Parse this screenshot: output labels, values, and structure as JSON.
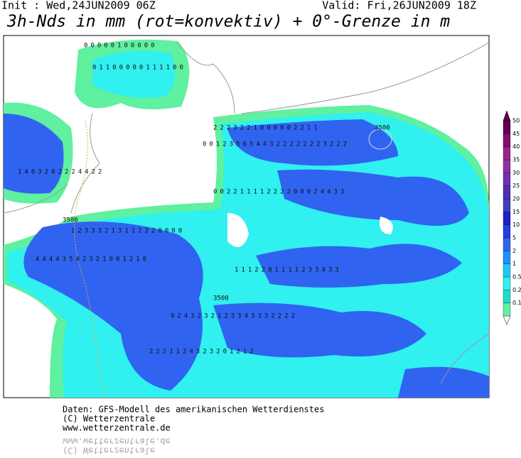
{
  "header": {
    "init": "Init : Wed,24JUN2009 06Z",
    "valid": "Valid: Fri,26JUN2009 18Z",
    "title": "3h-Nds in mm (rot=konvektiv) + 0°-Grenze in m"
  },
  "map": {
    "contour_labels": [
      "3500",
      "3500",
      "3500"
    ],
    "digit_rows": [
      "00000100000",
      "01100000111100",
      "2223221000002211",
      "0012356544322222223222",
      "1463202224422",
      "00221111222200024433",
      "12333213112220000",
      "44443542321001210",
      "1112201111233433",
      "0243232123343332222",
      "2221124323201212"
    ]
  },
  "legend": {
    "levels": [
      {
        "label": "0.1",
        "color": "#5ff0a0"
      },
      {
        "label": "0.2",
        "color": "#20dcc8"
      },
      {
        "label": "0.5",
        "color": "#30f0f0"
      },
      {
        "label": "1",
        "color": "#20c8f8"
      },
      {
        "label": "2",
        "color": "#1e90ff"
      },
      {
        "label": "5",
        "color": "#3064f0"
      },
      {
        "label": "10",
        "color": "#2040e0"
      },
      {
        "label": "15",
        "color": "#2020c8"
      },
      {
        "label": "20",
        "color": "#4040c0"
      },
      {
        "label": "25",
        "color": "#5030b0"
      },
      {
        "label": "30",
        "color": "#7030b0"
      },
      {
        "label": "35",
        "color": "#9030a0"
      },
      {
        "label": "40",
        "color": "#a02090"
      },
      {
        "label": "45",
        "color": "#801070"
      },
      {
        "label": "50",
        "color": "#600050"
      }
    ]
  },
  "footer": {
    "lines": [
      "Daten: GFS-Modell des amerikanischen Wetterdienstes",
      "(C) Wetterzentrale",
      "www.wetterzentrale.de"
    ]
  }
}
